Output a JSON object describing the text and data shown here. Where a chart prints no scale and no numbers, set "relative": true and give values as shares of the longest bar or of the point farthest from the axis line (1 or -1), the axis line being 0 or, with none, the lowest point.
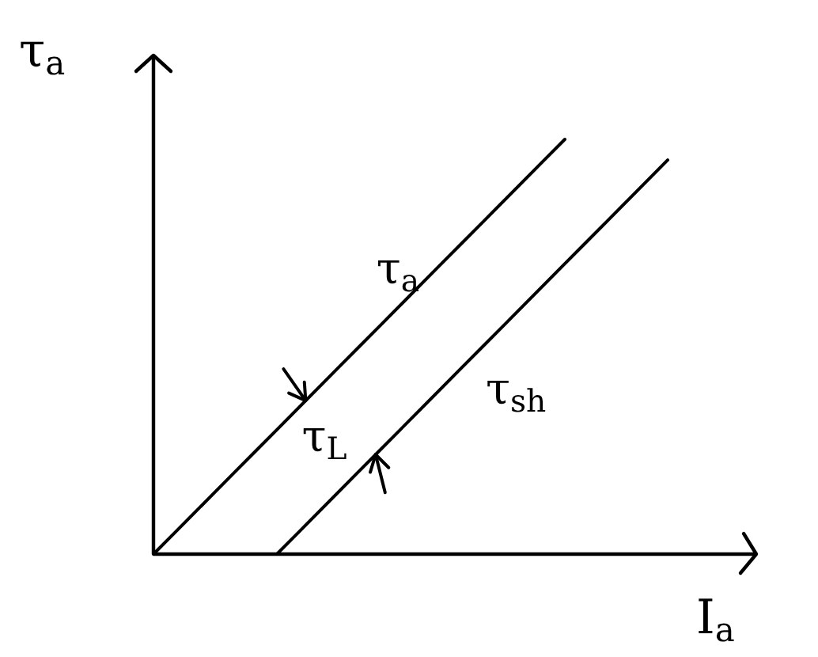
{
  "chart_data": {
    "type": "line",
    "relative": true,
    "xlabel": "I$_{a}$",
    "ylabel": "τ$_{a}$",
    "categories": [
      null,
      null,
      null,
      null,
      null,
      null,
      null,
      null,
      null,
      null,
      null,
      null,
      null,
      null,
      null,
      null,
      null,
      null,
      null,
      null,
      null,
      null,
      null,
      null,
      null,
      null,
      null,
      null,
      null,
      null
    ],
    "series": [
      {
        "name": "τ$_{a}$",
        "color": "#000000",
        "values": [
          0,
          0.05,
          0.1,
          0.15,
          0.2,
          0.25,
          0.3,
          0.35,
          0.4,
          0.45,
          0.5,
          0.55,
          0.6,
          0.65,
          0.7,
          0.75,
          0.8,
          0.85,
          0.9,
          0.95,
          1.0,
          null,
          null,
          null,
          null,
          null,
          null,
          null,
          null,
          null
        ]
      },
      {
        "name": "τ$_{sh}$",
        "color": "#000000",
        "values": [
          null,
          null,
          null,
          null,
          null,
          null,
          0,
          0.05,
          0.1,
          0.15,
          0.2,
          0.25,
          0.3,
          0.35,
          0.4,
          0.45,
          0.5,
          0.55,
          0.6,
          0.65,
          0.7,
          0.75,
          0.8,
          0.85,
          0.9,
          0.95,
          null,
          null,
          null,
          null
        ]
      }
    ],
    "annotations": [
      "τ$_{L}$"
    ]
  }
}
